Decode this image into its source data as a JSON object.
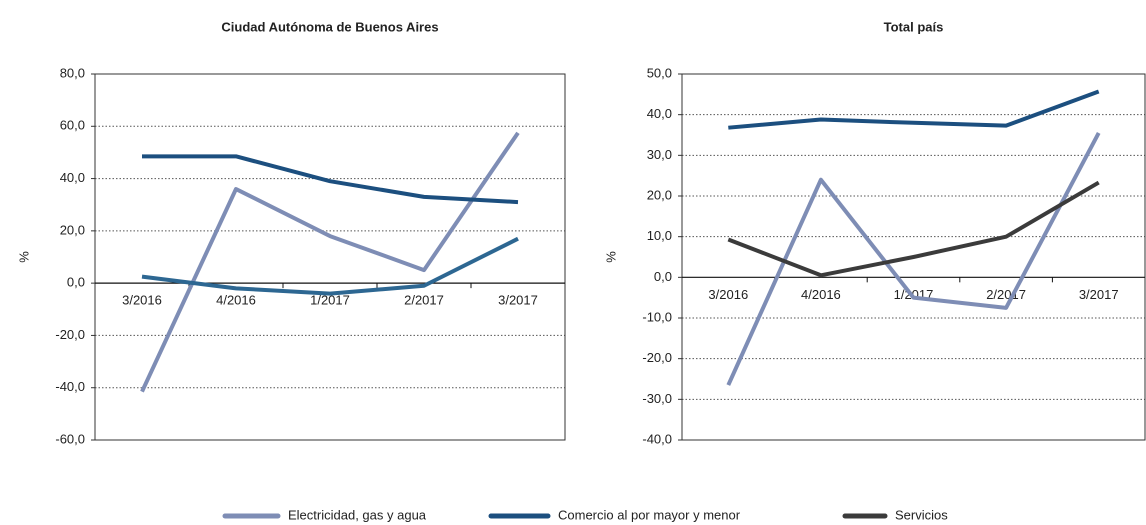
{
  "chart_data": [
    {
      "type": "line",
      "title": "Ciudad Autónoma de Buenos Aires",
      "y_label": "%",
      "categories": [
        "3/2016",
        "4/2016",
        "1/2017",
        "2/2017",
        "3/2017"
      ],
      "series": [
        {
          "name": "Electricidad, gas y agua",
          "color": "#7e8db5",
          "values": [
            -41.5,
            36,
            18,
            5,
            57.5
          ]
        },
        {
          "name": "Comercio al por mayor y menor",
          "color": "#1c4f7f",
          "values": [
            48.5,
            48.5,
            39,
            33,
            31
          ]
        },
        {
          "name": "Servicios",
          "color": "#2d6792",
          "values": [
            2.5,
            -2,
            -4,
            -1,
            17
          ]
        }
      ],
      "ylim": [
        -60,
        80
      ],
      "yticks": [
        {
          "value": -60,
          "label": "-60,0"
        },
        {
          "value": -40,
          "label": "-40,0"
        },
        {
          "value": -20,
          "label": "-20,0"
        },
        {
          "value": 0,
          "label": "0,0"
        },
        {
          "value": 20,
          "label": "20,0"
        },
        {
          "value": 40,
          "label": "40,0"
        },
        {
          "value": 60,
          "label": "60,0"
        },
        {
          "value": 80,
          "label": "80,0"
        }
      ],
      "grid": true
    },
    {
      "type": "line",
      "title": "Total país",
      "y_label": "%",
      "categories": [
        "3/2016",
        "4/2016",
        "1/2017",
        "2/2017",
        "3/2017"
      ],
      "series": [
        {
          "name": "Electricidad, gas y agua",
          "color": "#7e8db5",
          "values": [
            -26.5,
            24,
            -5,
            -7.5,
            35.5
          ]
        },
        {
          "name": "Comercio al por mayor y menor",
          "color": "#1c4f7f",
          "values": [
            36.8,
            38.8,
            38,
            37.3,
            45.7
          ]
        },
        {
          "name": "Servicios",
          "color": "#3b3b3b",
          "values": [
            9.3,
            0.5,
            5,
            10,
            23.3
          ]
        }
      ],
      "ylim": [
        -40,
        50
      ],
      "yticks": [
        {
          "value": -40,
          "label": "-40,0"
        },
        {
          "value": -30,
          "label": "-30,0"
        },
        {
          "value": -20,
          "label": "-20,0"
        },
        {
          "value": -10,
          "label": "-10,0"
        },
        {
          "value": 0,
          "label": "0,0"
        },
        {
          "value": 10,
          "label": "10,0"
        },
        {
          "value": 20,
          "label": "20,0"
        },
        {
          "value": 30,
          "label": "30,0"
        },
        {
          "value": 40,
          "label": "40,0"
        },
        {
          "value": 50,
          "label": "50,0"
        }
      ],
      "grid": true
    }
  ]
}
